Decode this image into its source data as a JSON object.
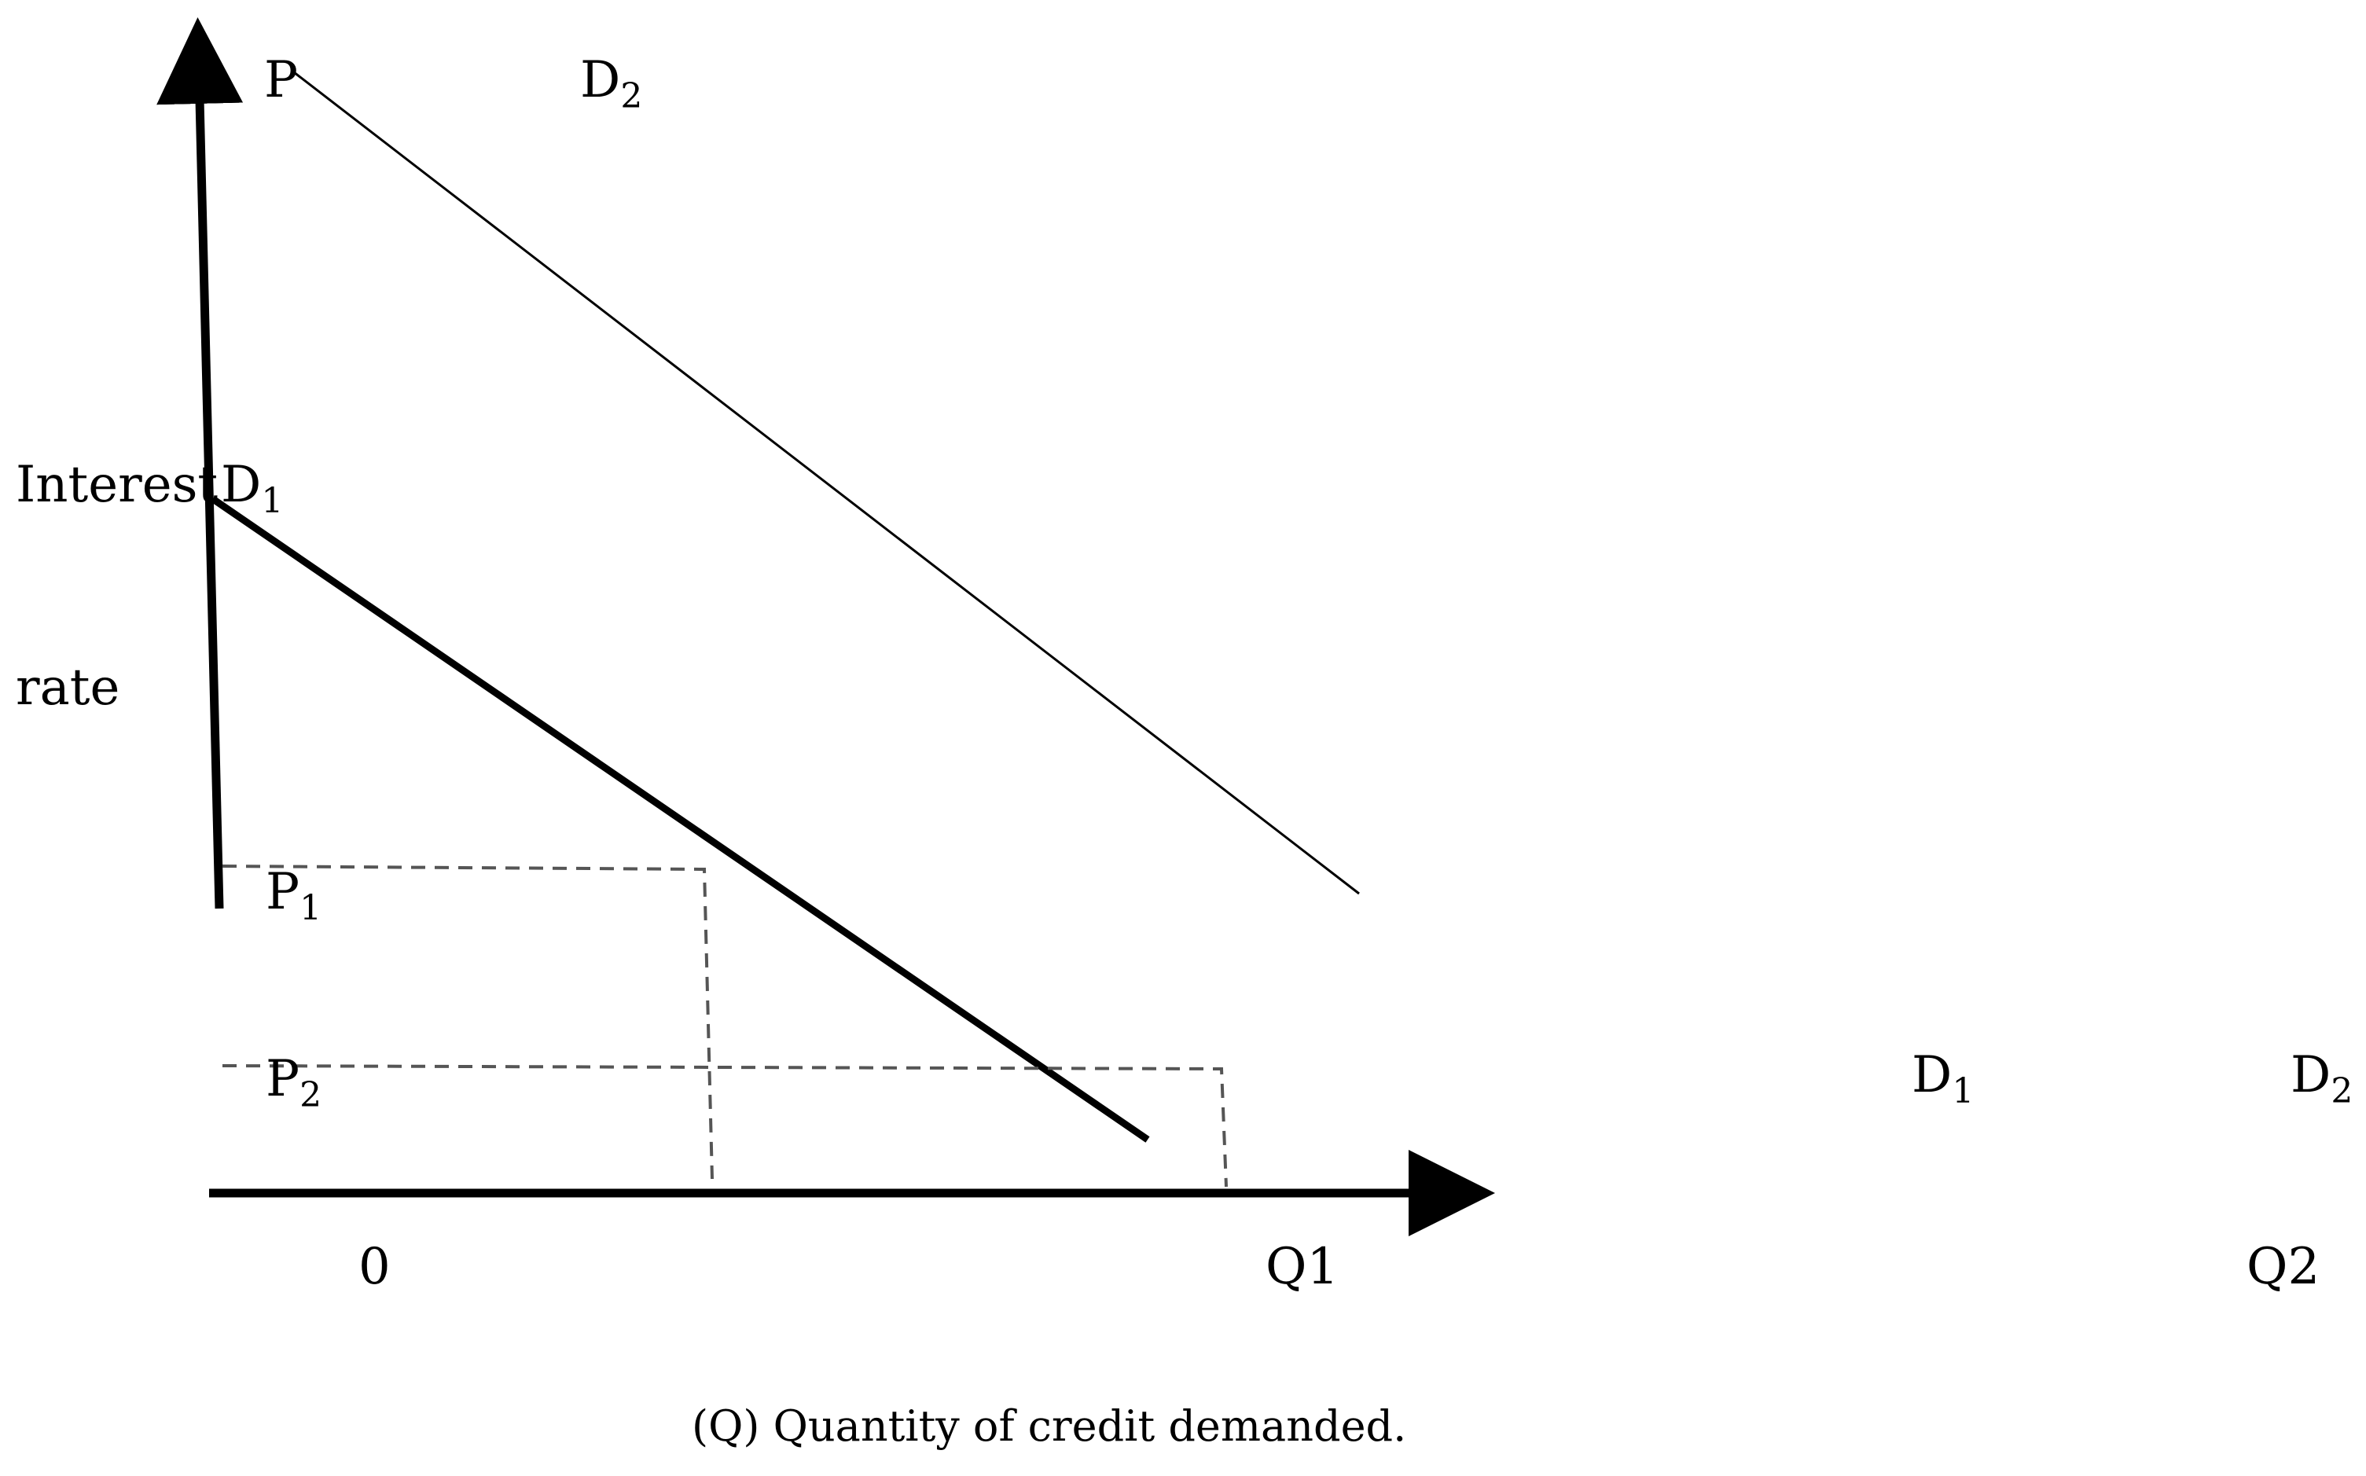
{
  "diagram": {
    "ylabel": {
      "line1": "Interest",
      "line2": "rate"
    },
    "xlabel": "(Q) Quantity of credit demanded.",
    "labels": {
      "p_top": "P",
      "d2_top_main": "D",
      "d2_top_sub": "2",
      "d1_left_main": "D",
      "d1_left_sub": "1",
      "p1_main": "P",
      "p1_sub": "1",
      "p2_main": "P",
      "p2_sub": "2",
      "d1_right_main": "D",
      "d1_right_sub": "1",
      "d2_right_main": "D",
      "d2_right_sub": "2",
      "origin": "0",
      "q1": "Q1",
      "q2": "Q2"
    },
    "curves": [
      {
        "name": "D1",
        "style": "thick"
      },
      {
        "name": "D2",
        "style": "thin"
      }
    ],
    "colors": {
      "line": "#000000",
      "dashed": "#555555",
      "background": "#ffffff"
    }
  }
}
